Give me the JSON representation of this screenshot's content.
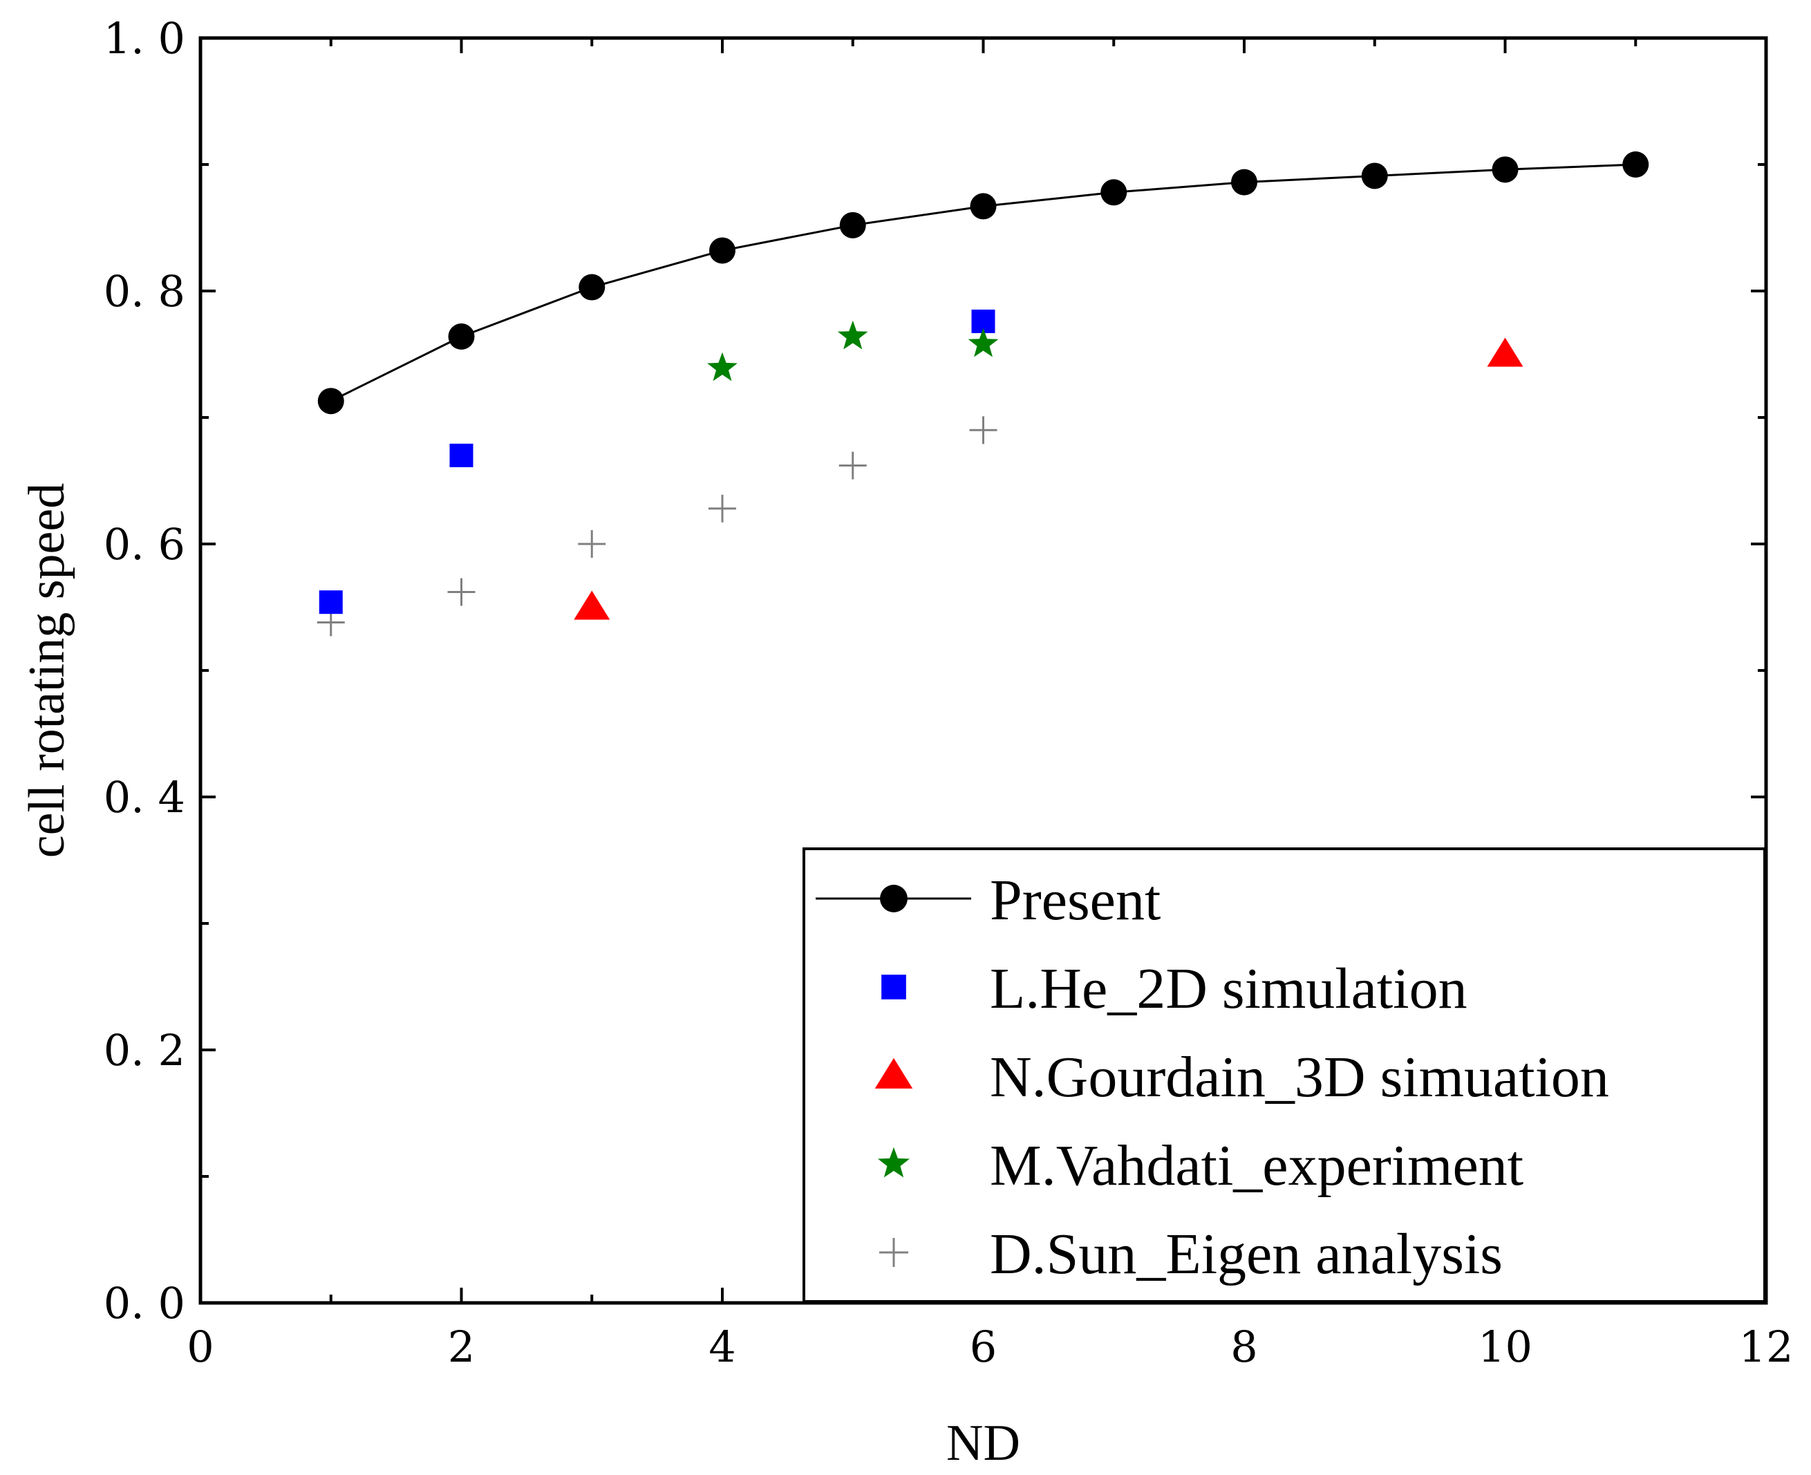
{
  "chart_data": {
    "type": "scatter",
    "title": "",
    "xlabel": "ND",
    "ylabel": "cell rotating speed",
    "xlim": [
      0,
      12
    ],
    "ylim": [
      0.0,
      1.0
    ],
    "xticks": [
      0,
      2,
      4,
      6,
      8,
      10,
      12
    ],
    "xtick_labels": [
      "0",
      "2",
      "4",
      "6",
      "8",
      "10",
      "12"
    ],
    "yticks": [
      0.0,
      0.2,
      0.4,
      0.6,
      0.8,
      1.0
    ],
    "ytick_labels": [
      "0. 0",
      "0. 2",
      "0. 4",
      "0. 6",
      "0. 8",
      "1. 0"
    ],
    "grid": false,
    "legend_position": "bottom-right",
    "series": [
      {
        "name": "Present",
        "marker": "circle",
        "line": true,
        "color": "#000000",
        "x": [
          1,
          2,
          3,
          4,
          5,
          6,
          7,
          8,
          9,
          10,
          11
        ],
        "y": [
          0.713,
          0.764,
          0.803,
          0.832,
          0.852,
          0.867,
          0.878,
          0.886,
          0.891,
          0.896,
          0.9
        ]
      },
      {
        "name": "L.He_2D simulation",
        "marker": "square",
        "line": false,
        "color": "#0000ff",
        "x": [
          1,
          2,
          6
        ],
        "y": [
          0.554,
          0.67,
          0.776
        ]
      },
      {
        "name": "N.Gourdain_3D simuation",
        "marker": "triangle",
        "line": false,
        "color": "#ff0000",
        "x": [
          3,
          10
        ],
        "y": [
          0.55,
          0.75
        ]
      },
      {
        "name": "M.Vahdati_experiment",
        "marker": "star",
        "line": false,
        "color": "#008000",
        "x": [
          4,
          5,
          6
        ],
        "y": [
          0.739,
          0.764,
          0.758
        ]
      },
      {
        "name": "D.Sun_Eigen analysis",
        "marker": "plus",
        "line": false,
        "color": "#808080",
        "x": [
          1,
          2,
          3,
          4,
          5,
          6
        ],
        "y": [
          0.538,
          0.562,
          0.6,
          0.628,
          0.662,
          0.69
        ]
      }
    ]
  }
}
